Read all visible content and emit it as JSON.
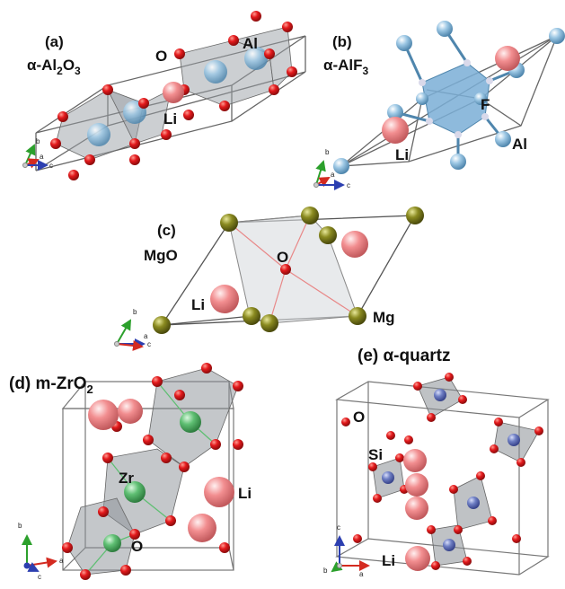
{
  "panels": {
    "a": {
      "tag": "(a)",
      "name_prefix": "α-Al",
      "sub1": "2",
      "name_mid": "O",
      "sub2": "3",
      "labels": {
        "o": "O",
        "al": "Al",
        "li": "Li"
      }
    },
    "b": {
      "tag": "(b)",
      "name_prefix": "α-AlF",
      "sub1": "3",
      "labels": {
        "f": "F",
        "li": "Li",
        "al": "Al"
      }
    },
    "c": {
      "tag": "(c)",
      "name": "MgO",
      "labels": {
        "o": "O",
        "li": "Li",
        "mg": "Mg"
      }
    },
    "d": {
      "tag": "(d) m-ZrO",
      "sub1": "2",
      "labels": {
        "zr": "Zr",
        "li": "Li",
        "o": "O"
      }
    },
    "e": {
      "tag": "(e) α-quartz",
      "labels": {
        "o": "O",
        "si": "Si",
        "li": "Li"
      }
    }
  },
  "axes": {
    "a": "a",
    "b": "b",
    "c": "c"
  },
  "colors": {
    "oxygen": "#e3191c",
    "lithium": "#f28e90",
    "aluminum": "#9cc7e4",
    "fluorine": "#f28e90",
    "magnesium": "#8a8a20",
    "zirconium": "#5fbf73",
    "silicon": "#6f7fc4",
    "polyhedron": "#9a9fa6",
    "cell_edge": "#555555",
    "axis_a": "#d42a20",
    "axis_b": "#2ca02c",
    "axis_c": "#2c3fb0"
  }
}
